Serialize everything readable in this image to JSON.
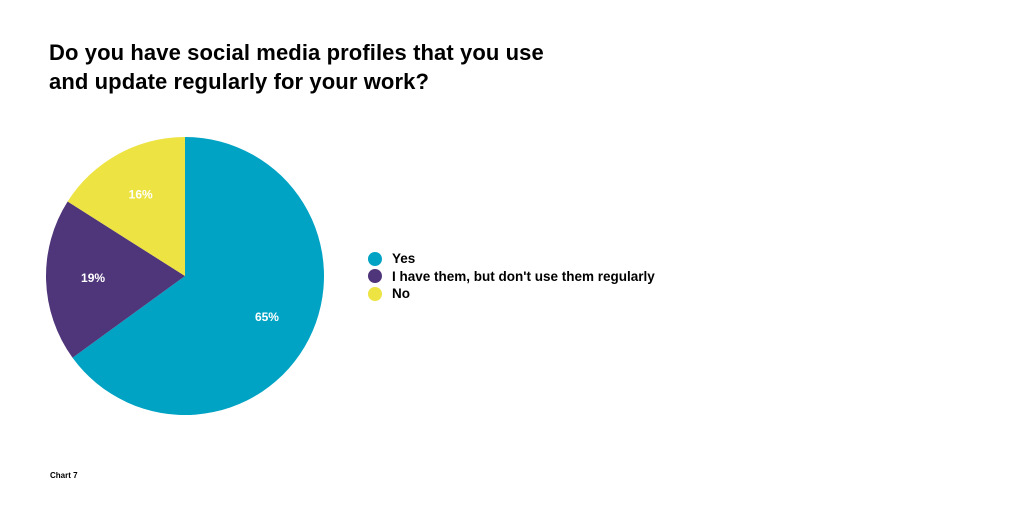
{
  "title_lines": [
    "Do you have social media profiles that you use",
    "and update regularly for your work?"
  ],
  "footnote": "Chart 7",
  "chart_data": {
    "type": "pie",
    "title": "Do you have social media profiles that you use and update regularly for your work?",
    "slices": [
      {
        "label": "Yes",
        "value": 65,
        "value_label": "65%",
        "color": "#00a3c4"
      },
      {
        "label": "I have them, but don't use them regularly",
        "value": 19,
        "value_label": "19%",
        "color": "#4f3579"
      },
      {
        "label": "No",
        "value": 16,
        "value_label": "16%",
        "color": "#ede343"
      }
    ],
    "start": "12 o'clock",
    "direction": "clockwise",
    "legend_position": "right"
  }
}
